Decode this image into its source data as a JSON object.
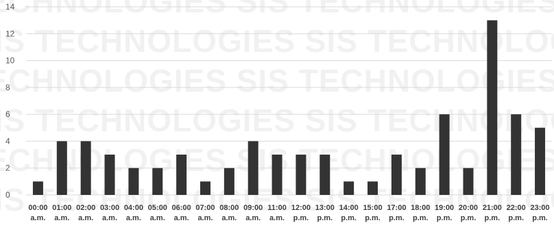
{
  "chart_data": {
    "type": "bar",
    "title": "",
    "xlabel": "",
    "ylabel": "",
    "ylim": [
      0,
      14
    ],
    "yticks": [
      0,
      2,
      4,
      6,
      8,
      10,
      12,
      14
    ],
    "grid": true,
    "legend": "none",
    "categories": [
      "00:00 a.m.",
      "01:00 a.m.",
      "02:00 a.m.",
      "03:00 a.m.",
      "04:00 a.m.",
      "05:00 a.m.",
      "06:00 a.m.",
      "07:00 a.m.",
      "08:00 a.m.",
      "09:00 a.m.",
      "11:00 a.m.",
      "12:00 p.m.",
      "13:00 p.m.",
      "14:00 p.m.",
      "15:00 p.m.",
      "17:00 p.m.",
      "18:00 p.m.",
      "19:00 p.m.",
      "20:00 p.m.",
      "21:00 p.m.",
      "22:00 p.m.",
      "23:00 p.m."
    ],
    "values": [
      1,
      4,
      4,
      3,
      2,
      2,
      3,
      1,
      2,
      4,
      3,
      3,
      3,
      1,
      1,
      3,
      2,
      6,
      2,
      13,
      6,
      5
    ],
    "bar_color": "#333333",
    "grid_color": "#d9d9d9"
  },
  "watermark": "SIS TECHNOLOGIES"
}
